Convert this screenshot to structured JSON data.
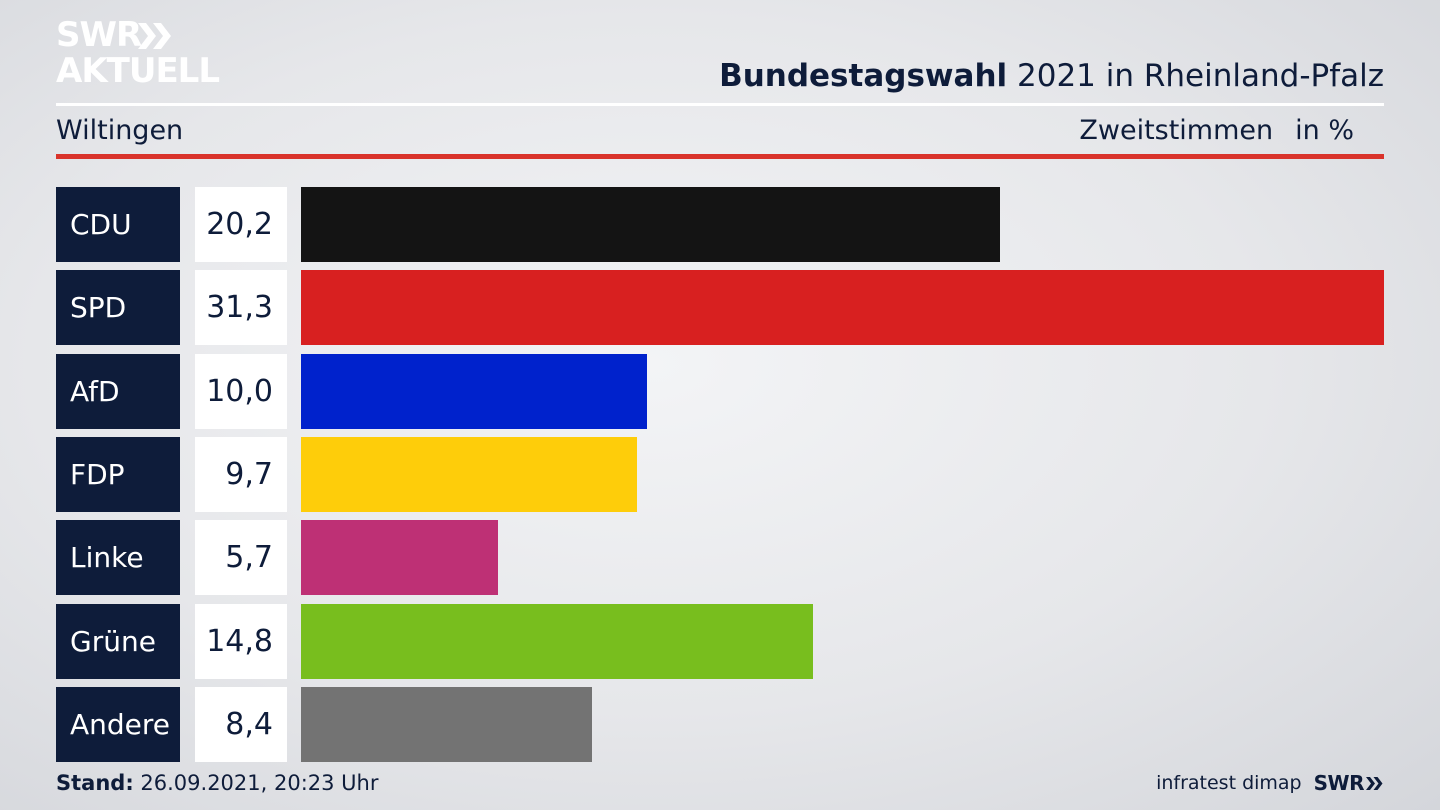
{
  "brand": {
    "logo_line1": "SWR",
    "logo_line2": "AKTUELL"
  },
  "header": {
    "title_bold": "Bundestagswahl",
    "title_rest": " 2021 in Rheinland-Pfalz",
    "location": "Wiltingen",
    "measure": "Zweitstimmen",
    "unit": "in %"
  },
  "chart_data": {
    "type": "bar",
    "orientation": "horizontal",
    "categories": [
      "CDU",
      "SPD",
      "AfD",
      "FDP",
      "Linke",
      "Grüne",
      "Andere"
    ],
    "values": [
      20.2,
      31.3,
      10.0,
      9.7,
      5.7,
      14.8,
      8.4
    ],
    "value_labels": [
      "20,2",
      "31,3",
      "10,0",
      "9,7",
      "5,7",
      "14,8",
      "8,4"
    ],
    "colors": [
      "#141414",
      "#d82020",
      "#0022cc",
      "#fecd0a",
      "#be3075",
      "#78be1e",
      "#737373"
    ],
    "xlim": [
      0,
      31.3
    ],
    "grid": false,
    "legend": "none"
  },
  "footer": {
    "stand_label": "Stand:",
    "stand_value": " 26.09.2021, 20:23 Uhr",
    "source": "infratest dimap",
    "brand": "SWR"
  },
  "colors": {
    "navy": "#0e1c3a",
    "accent_red": "#d9332b"
  }
}
